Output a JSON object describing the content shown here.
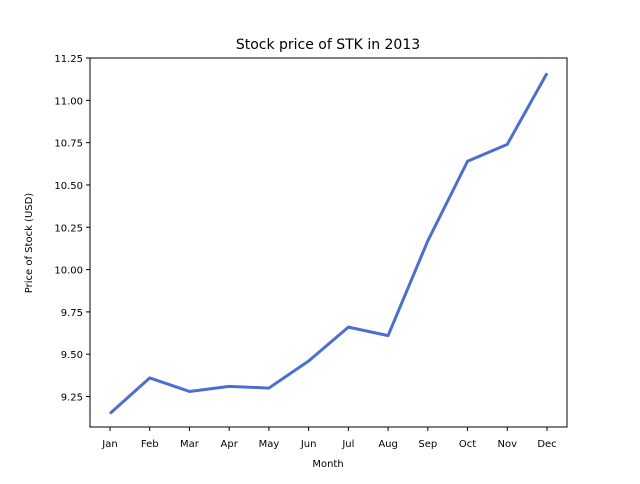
{
  "chart_data": {
    "type": "line",
    "title": "Stock price of STK in 2013",
    "xlabel": "Month",
    "ylabel": "Price of Stock (USD)",
    "categories": [
      "Jan",
      "Feb",
      "Mar",
      "Apr",
      "May",
      "Jun",
      "Jul",
      "Aug",
      "Sep",
      "Oct",
      "Nov",
      "Dec"
    ],
    "series": [
      {
        "values": [
          9.15,
          9.36,
          9.28,
          9.31,
          9.3,
          9.46,
          9.66,
          9.61,
          10.17,
          10.64,
          10.74,
          11.16
        ],
        "color": "#4c6fcf"
      }
    ],
    "ylim": [
      9.07,
      11.25
    ],
    "yticks": [
      9.25,
      9.5,
      9.75,
      10.0,
      10.25,
      10.5,
      10.75,
      11.0,
      11.25
    ],
    "ytick_labels": [
      "9.25",
      "9.50",
      "9.75",
      "10.00",
      "10.25",
      "10.50",
      "10.75",
      "11.00",
      "11.25"
    ],
    "grid": false,
    "legend": "none"
  }
}
